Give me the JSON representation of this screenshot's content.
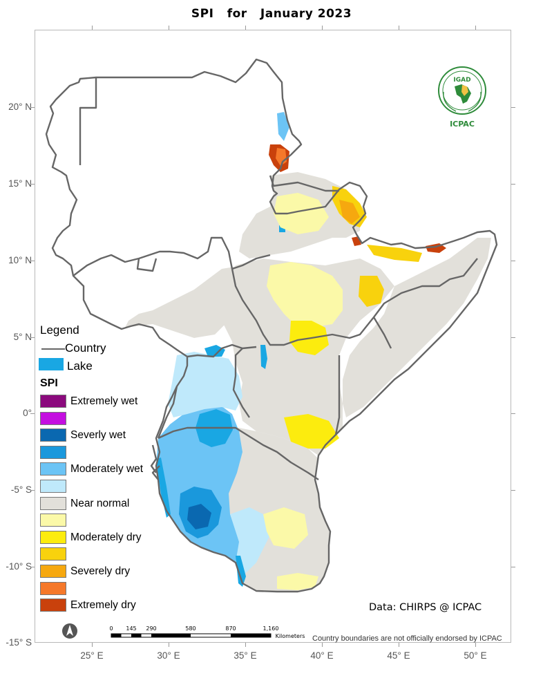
{
  "title": "SPI   for   January 2023",
  "map": {
    "lat_labels": [
      {
        "label": "20° N"
      },
      {
        "label": "15° N"
      },
      {
        "label": "10° N"
      },
      {
        "label": "5° N"
      },
      {
        "label": "0°"
      },
      {
        "label": "-5° S"
      },
      {
        "label": "-10° S"
      },
      {
        "label": "-15° S"
      }
    ],
    "lon_labels": [
      {
        "label": "25° E"
      },
      {
        "label": "30° E"
      },
      {
        "label": "35° E"
      },
      {
        "label": "40° E"
      },
      {
        "label": "45° E"
      },
      {
        "label": "50° E"
      }
    ]
  },
  "legend": {
    "title": "Legend",
    "country_label": "Country",
    "lake_label": "Lake",
    "lake_color": "#19a7e3",
    "spi_title": "SPI",
    "classes": [
      {
        "label": "Extremely wet",
        "color": "#8b0a7d"
      },
      {
        "label": "",
        "color": "#c40fe0"
      },
      {
        "label": "Severly wet",
        "color": "#0a68b0"
      },
      {
        "label": "",
        "color": "#1a98dc"
      },
      {
        "label": "Moderately wet",
        "color": "#6cc4f5"
      },
      {
        "label": "",
        "color": "#bfe9fb"
      },
      {
        "label": "Near normal",
        "color": "#e2e0da"
      },
      {
        "label": "",
        "color": "#fbf9a8"
      },
      {
        "label": "Moderately dry",
        "color": "#fcec0e"
      },
      {
        "label": "",
        "color": "#f8d20d"
      },
      {
        "label": "Severely dry",
        "color": "#f6a80f"
      },
      {
        "label": "",
        "color": "#f5782a"
      },
      {
        "label": "Extremely dry",
        "color": "#c9410c"
      }
    ]
  },
  "credit": "Data: CHIRPS @ ICPAC",
  "scale": {
    "ticks": [
      "0",
      "145",
      "290",
      "580",
      "870",
      "1,160"
    ],
    "unit": "Kilometers"
  },
  "disclaimer": "Country boundaries are not officially endorsed by ICPAC",
  "logo": {
    "top_text": "IGAD",
    "bottom_text": "ICPAC",
    "color": "#2e8b3a"
  },
  "north_arrow_icon": "north-arrow-icon"
}
